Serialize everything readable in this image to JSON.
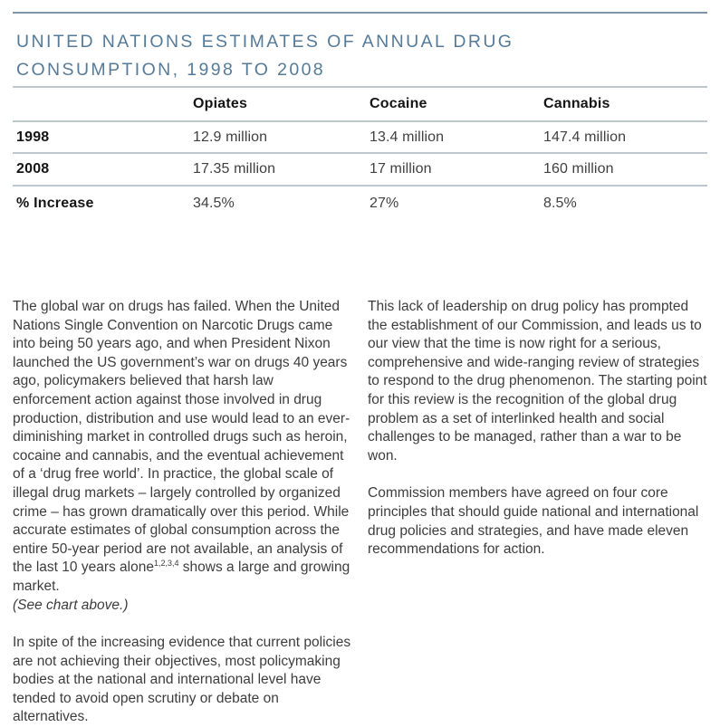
{
  "page": {
    "title_line1": "UNITED NATIONS ESTIMATES OF ANNUAL DRUG",
    "title_line2": "CONSUMPTION, 1998 TO 2008"
  },
  "colors": {
    "top_rule": "#7e95ac",
    "title_text": "#567b99",
    "table_rule": "#bcc7ce",
    "heading_text": "#151515",
    "body_text": "#3d3d3d"
  },
  "table": {
    "headers": [
      "",
      "Opiates",
      "Cocaine",
      "Cannabis"
    ],
    "rows": [
      {
        "label": "1998",
        "values": [
          "12.9 million",
          "13.4 million",
          "147.4 million"
        ]
      },
      {
        "label": "2008",
        "values": [
          "17.35 million",
          "17 million",
          "160 million"
        ]
      },
      {
        "label": "% Increase",
        "values": [
          "34.5%",
          "27%",
          "8.5%"
        ]
      }
    ]
  },
  "body": {
    "left": {
      "para1_text": "The global war on drugs has failed. When the United Nations Single Convention on Narcotic Drugs came into being 50 years ago, and when President Nixon launched the US government’s war on drugs 40 years ago, policymakers believed that harsh law enforcement action against those involved in drug production, distribution and use would lead to an ever-diminishing market in controlled drugs such as heroin, cocaine and cannabis, and the eventual achievement of a ‘drug free world’. In practice, the global scale of illegal drug markets – largely controlled by organized crime – has grown dramatically over this period. While accurate estimates of global consumption across the entire 50-year period are not available, an analysis of the last 10 years alone",
      "para1_superscript": "1,2,3,4",
      "para1_text_after": " shows a large and growing market.",
      "para1_note": "(See chart above.)",
      "para2": "In spite of the increasing evidence that current policies are not achieving their objectives, most policymaking bodies at the national and international level have tended to avoid open scrutiny or debate on alternatives."
    },
    "right": {
      "para1": "This lack of leadership on drug policy has prompted the establishment of our Commission, and leads us to our view that the time is now right for a serious, comprehensive and wide-ranging review of strategies to respond to the drug phenomenon. The starting point for this review is the recognition of the global drug problem as a set of interlinked health and social challenges to be managed, rather than a war to be won.",
      "para2": "Commission members have agreed on four core principles that should guide national and international drug policies and strategies, and have made eleven recommendations for action."
    }
  }
}
